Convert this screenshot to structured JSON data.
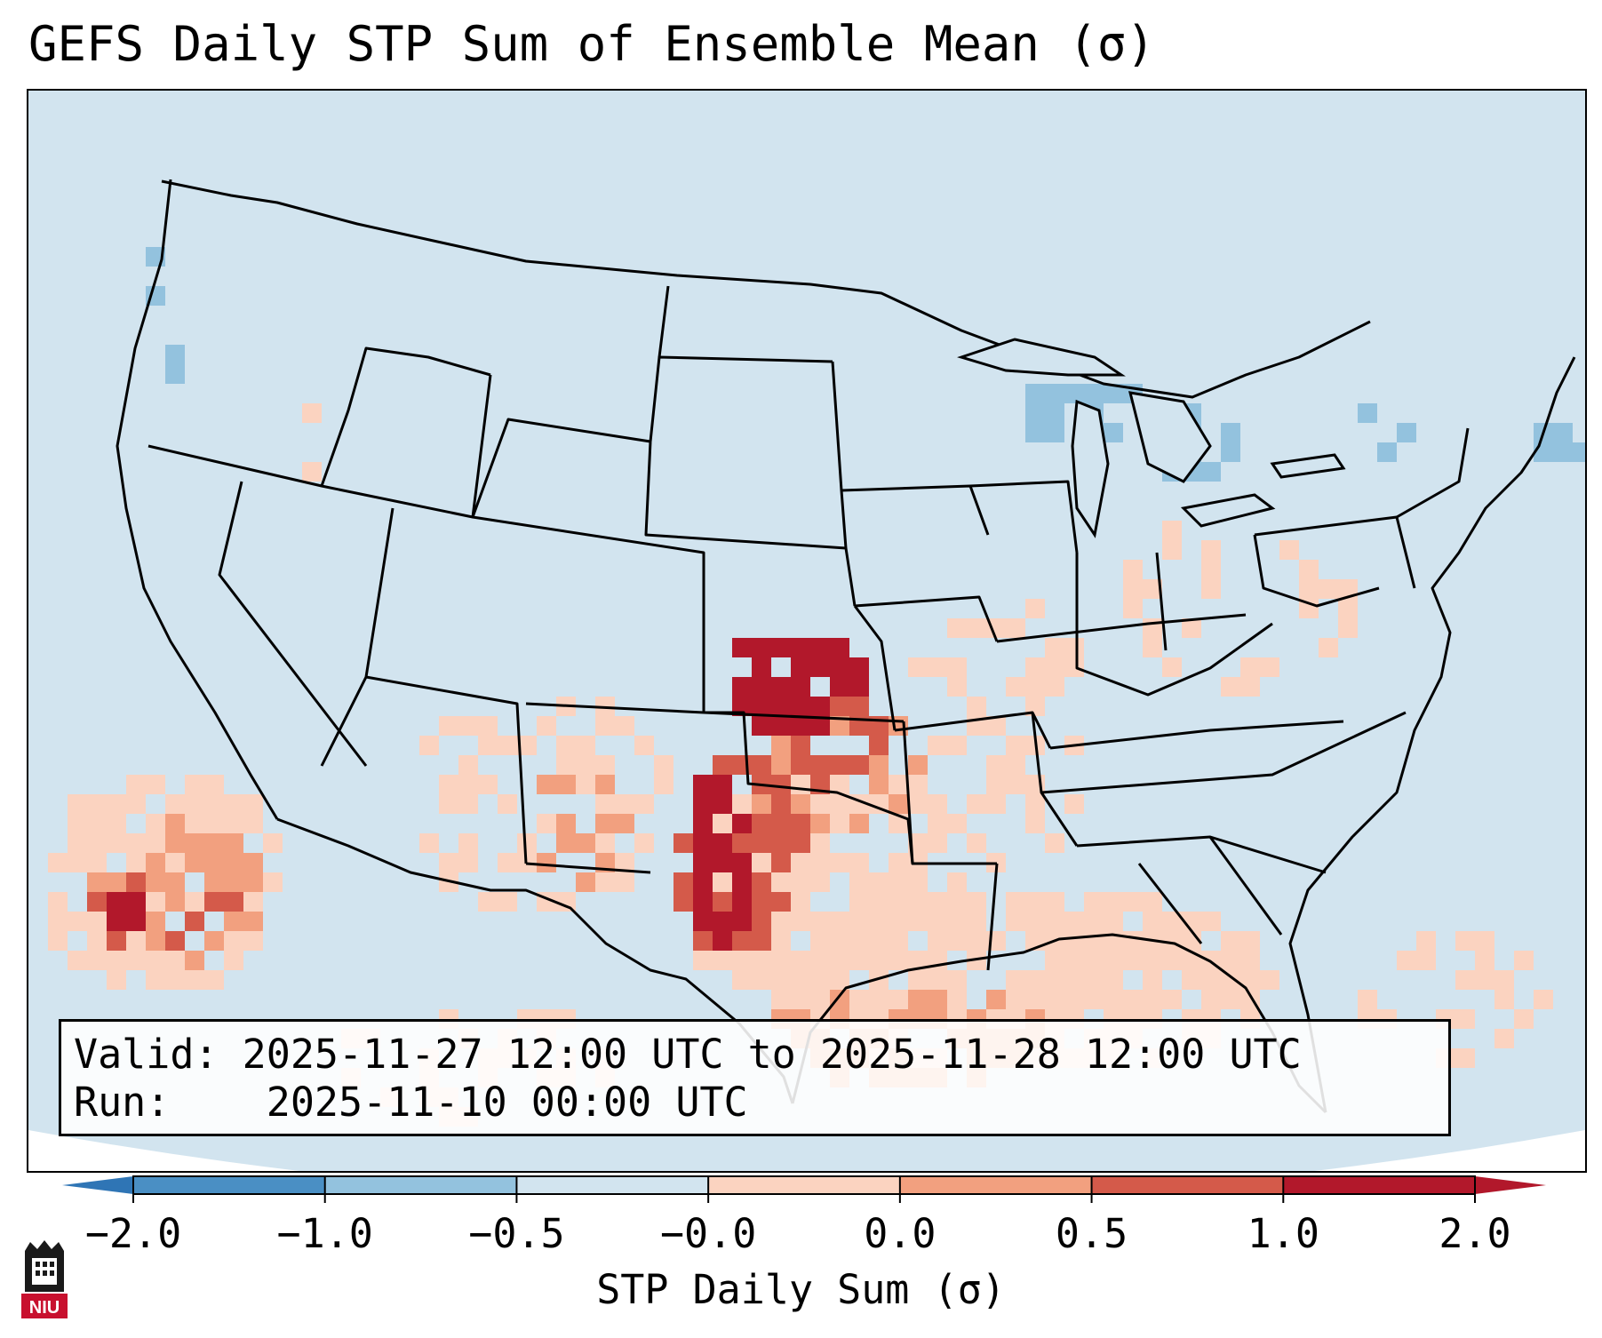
{
  "title": "GEFS Daily STP Sum of Ensemble Mean (σ)",
  "info": {
    "valid_label": "Valid:",
    "valid_value": "2025-11-27 12:00 UTC to 2025-11-28 12:00 UTC",
    "run_label": "Run:",
    "run_value": "2025-11-10 00:00 UTC"
  },
  "colorbar": {
    "label": "STP Daily Sum (σ)",
    "ticks": [
      "−2.0",
      "−1.0",
      "−0.5",
      "−0.0",
      "0.0",
      "0.5",
      "1.0",
      "2.0"
    ],
    "colors": [
      "#4a8fc4",
      "#93c2de",
      "#d2e4ef",
      "#f7f7f7",
      "#fbd3c0",
      "#f2a07f",
      "#d45a4a",
      "#b2182b"
    ],
    "extend_low_color": "#2f75b5",
    "extend_high_color": "#b2182b"
  },
  "map": {
    "projection": "Lambert conformal, CONUS",
    "background_color": "#d2e4ef",
    "outside_color": "#ffffff"
  },
  "logo": {
    "text": "NIU",
    "color": "#c8102e"
  }
}
